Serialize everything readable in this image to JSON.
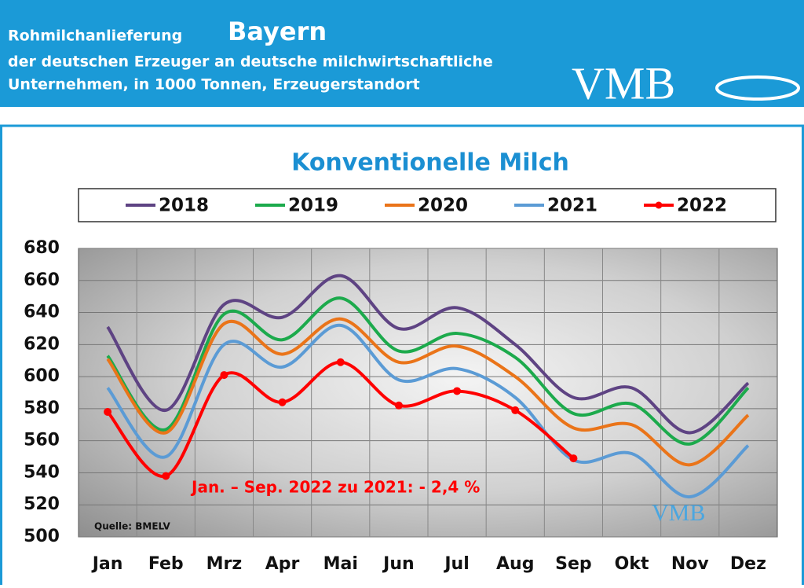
{
  "header": {
    "title_prefix": "Rohmilchanlieferung",
    "title_region": "Bayern",
    "line1": "der deutschen Erzeuger an deutsche milchwirtschaftliche",
    "line2": "Unternehmen, in 1000 Tonnen, Erzeugerstandort",
    "logo": "VMB"
  },
  "chart_data": {
    "type": "line",
    "title": "Konventionelle Milch",
    "categories": [
      "Jan",
      "Feb",
      "Mrz",
      "Apr",
      "Mai",
      "Jun",
      "Jul",
      "Aug",
      "Sep",
      "Okt",
      "Nov",
      "Dez"
    ],
    "series": [
      {
        "name": "2018",
        "color": "#5e4383",
        "values": [
          631,
          579,
          645,
          637,
          663,
          630,
          643,
          620,
          587,
          593,
          565,
          596
        ]
      },
      {
        "name": "2019",
        "color": "#1caa4c",
        "values": [
          613,
          567,
          639,
          623,
          649,
          616,
          627,
          612,
          577,
          583,
          558,
          593
        ]
      },
      {
        "name": "2020",
        "color": "#ea7419",
        "values": [
          611,
          565,
          633,
          614,
          636,
          609,
          619,
          600,
          568,
          570,
          545,
          576
        ]
      },
      {
        "name": "2021",
        "color": "#5b9bd5",
        "values": [
          593,
          550,
          620,
          606,
          632,
          598,
          605,
          587,
          548,
          552,
          525,
          557
        ]
      },
      {
        "name": "2022",
        "color": "#ff0000",
        "markers": true,
        "values": [
          578,
          538,
          601,
          584,
          609,
          582,
          591,
          579,
          549,
          null,
          null,
          null
        ]
      }
    ],
    "ylim": [
      500,
      680
    ],
    "yticks": [
      500,
      520,
      540,
      560,
      580,
      600,
      620,
      640,
      660,
      680
    ],
    "grid": true,
    "annotation": "Jan. – Sep. 2022 zu 2021: - 2,4 %",
    "source": "Quelle: BMELV",
    "logo": "VMB"
  }
}
